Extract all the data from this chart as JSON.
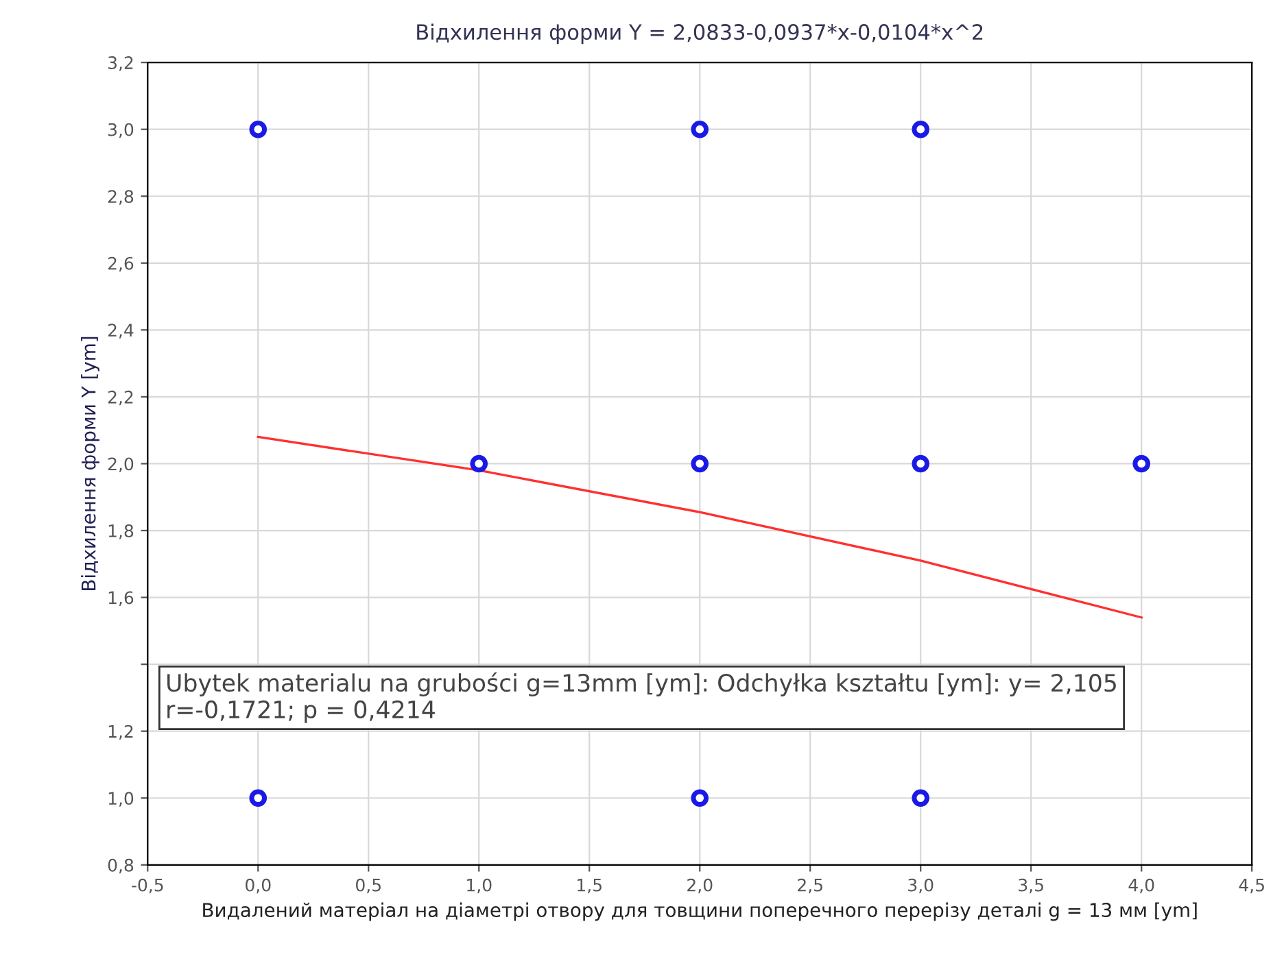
{
  "chart_data": {
    "type": "scatter",
    "title": "Відхилення форми Y = 2,0833-0,0937*x-0,0104*x^2",
    "xlabel": "Видалений матеріал на діаметрі отвору для товщини поперечного перерізу деталі g = 13 мм [ym]",
    "ylabel": "Відхилення форми Y [ym]",
    "series": [
      {
        "color": "#1a1ae6",
        "marker": "circle",
        "x": [
          0,
          2,
          3,
          1,
          2,
          3,
          4,
          0,
          2,
          3
        ],
        "values": [
          3,
          3,
          3,
          2,
          2,
          2,
          2,
          1,
          1,
          1
        ]
      },
      {
        "type": "line",
        "color": "#ff3030",
        "x": [
          0,
          1,
          2,
          3,
          4
        ],
        "values": [
          2.08,
          1.98,
          1.855,
          1.71,
          1.54
        ],
        "marker": "none"
      }
    ],
    "xlim": [
      -0.5,
      4.5
    ],
    "xticks": [
      {
        "value": -0.5,
        "label": "-0,5"
      },
      {
        "value": 0,
        "label": "0,0"
      },
      {
        "value": 0.5,
        "label": "0,5"
      },
      {
        "value": 1,
        "label": "1,0"
      },
      {
        "value": 1.5,
        "label": "1,5"
      },
      {
        "value": 2,
        "label": "2,0"
      },
      {
        "value": 2.5,
        "label": "2,5"
      },
      {
        "value": 3,
        "label": "3,0"
      },
      {
        "value": 3.5,
        "label": "3,5"
      },
      {
        "value": 4,
        "label": "4,0"
      },
      {
        "value": 4.5,
        "label": "4,5"
      }
    ],
    "ylim": [
      0.8,
      3.2
    ],
    "yticks": [
      {
        "value": 0.8,
        "label": "0,8"
      },
      {
        "value": 1.0,
        "label": "1,0"
      },
      {
        "value": 1.2,
        "label": "1,2"
      },
      {
        "value": 1.4,
        "label": null
      },
      {
        "value": 1.6,
        "label": "1,6"
      },
      {
        "value": 1.8,
        "label": "1,8"
      },
      {
        "value": 2.0,
        "label": "2,0"
      },
      {
        "value": 2.2,
        "label": "2,2"
      },
      {
        "value": 2.4,
        "label": "2,4"
      },
      {
        "value": 2.6,
        "label": "2,6"
      },
      {
        "value": 2.8,
        "label": "2,8"
      },
      {
        "value": 3.0,
        "label": "3,0"
      },
      {
        "value": 3.2,
        "label": "3,2"
      }
    ],
    "grid": true,
    "annotations": [
      "Ubytek materialu na grubości g=13mm [ym]: Odchyłka kształtu [ym]: y= 2,105\nr=-0,1721; p = 0,4214"
    ]
  }
}
